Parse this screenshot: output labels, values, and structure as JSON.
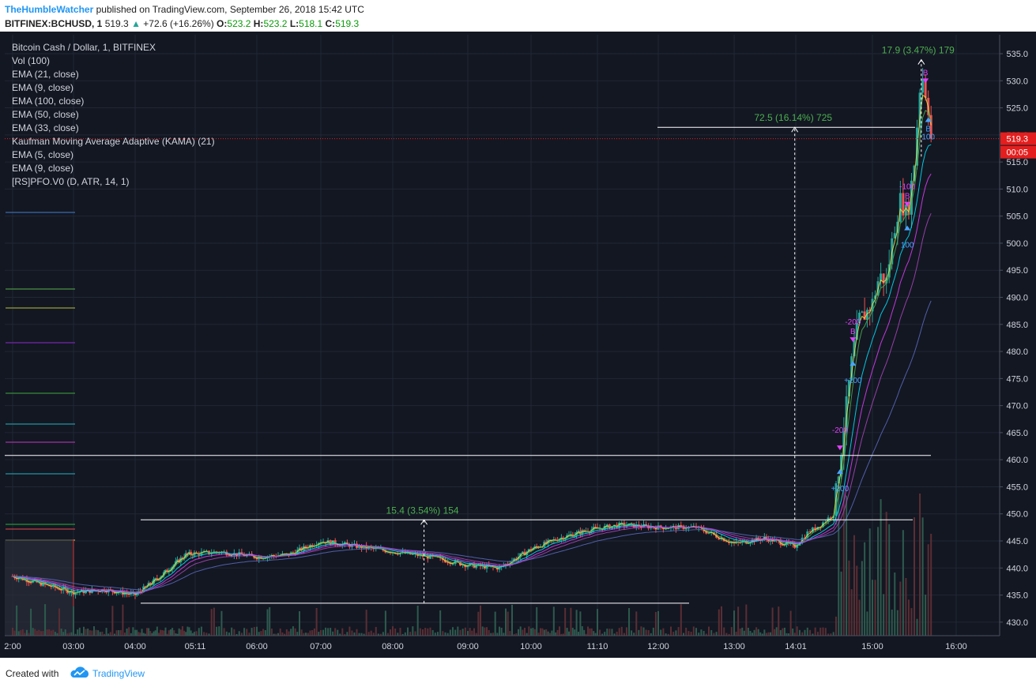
{
  "header": {
    "author": "TheHumbleWatcher",
    "published_text": "published on TradingView.com, September 26, 2018 15:42 UTC",
    "symbol": "BITFINEX:BCHUSD, 1",
    "last": "519.3",
    "change": "+72.6 (+16.26%)",
    "o_label": "O:",
    "o_value": "523.2",
    "h_label": "H:",
    "h_value": "523.2",
    "l_label": "L:",
    "l_value": "518.1",
    "c_label": "C:",
    "c_value": "519.3"
  },
  "legend": {
    "items": [
      "Bitcoin Cash / Dollar, 1, BITFINEX",
      "Vol (100)",
      "EMA (21, close)",
      "EMA (9, close)",
      "EMA (100, close)",
      "EMA (50, close)",
      "EMA (33, close)",
      "Kaufman Moving Average Adaptive (KAMA) (21)",
      "EMA (5, close)",
      "EMA (9, close)",
      "[RS]PFO.V0 (D, ATR, 14, 1)"
    ]
  },
  "footer": {
    "created_with": "Created with",
    "brand": "TradingView"
  },
  "colors": {
    "background": "#131722",
    "up": "#26a69a",
    "down": "#ef5350",
    "price_tag": "#e41e1e",
    "measure_text": "#4caf50"
  },
  "chart_data": {
    "type": "candlestick",
    "ylim": [
      427.5,
      538.5
    ],
    "y_ticks": [
      430.0,
      435.0,
      440.0,
      445.0,
      450.0,
      455.0,
      460.0,
      465.0,
      470.0,
      475.0,
      480.0,
      485.0,
      490.0,
      495.0,
      500.0,
      505.0,
      510.0,
      515.0,
      520.0,
      525.0,
      530.0,
      535.0
    ],
    "x_ticks": [
      "2:00",
      "03:00",
      "04:00",
      "05:11",
      "06:00",
      "07:00",
      "08:00",
      "09:00",
      "10:00",
      "11:10",
      "12:00",
      "13:00",
      "14:01",
      "15:00",
      "16:00"
    ],
    "price_series": {
      "times": [
        "02:00",
        "02:30",
        "03:00",
        "03:30",
        "04:00",
        "04:30",
        "05:00",
        "05:30",
        "06:00",
        "06:30",
        "07:00",
        "07:30",
        "08:00",
        "08:30",
        "09:00",
        "09:30",
        "10:00",
        "10:30",
        "11:00",
        "11:30",
        "12:00",
        "12:30",
        "13:00",
        "13:30",
        "14:00",
        "14:10",
        "14:20",
        "14:30",
        "14:40",
        "14:45",
        "14:50",
        "14:55",
        "15:00",
        "15:05",
        "15:10",
        "15:15",
        "15:20",
        "15:25",
        "15:30",
        "15:35",
        "15:40",
        "15:42"
      ],
      "close": [
        438.5,
        437.0,
        435.5,
        436.0,
        435.0,
        438.5,
        442.5,
        443.0,
        442.0,
        442.5,
        445.0,
        444.0,
        443.0,
        442.0,
        440.5,
        440.0,
        443.5,
        445.5,
        447.0,
        448.0,
        447.5,
        447.5,
        444.5,
        445.5,
        444.0,
        446.5,
        448.0,
        450.0,
        470.0,
        480.0,
        486.0,
        487.0,
        489.0,
        494.0,
        493.0,
        502.0,
        508.0,
        505.0,
        515.0,
        532.0,
        525.0,
        519.3
      ]
    },
    "current_price": "519.3",
    "countdown": "00:05",
    "horizontal_lines": [
      433.5,
      448.9,
      460.8,
      521.4
    ],
    "measurements": [
      {
        "label": "15.4 (3.54%) 154",
        "from": 433.5,
        "to": 448.9,
        "time": "08:25"
      },
      {
        "label": "72.5 (16.14%) 725",
        "from": 448.9,
        "to": 521.4,
        "time": "14:00"
      },
      {
        "label": "17.9 (3.47%) 179",
        "from": 516.0,
        "to": 533.9,
        "time": "15:35"
      }
    ],
    "signals": [
      {
        "time": "14:45",
        "side": "sell",
        "label": "-200",
        "letter": "B"
      },
      {
        "time": "15:25",
        "side": "sell",
        "label": "-100",
        "letter": "B"
      },
      {
        "time": "15:38",
        "side": "sell",
        "label": "",
        "letter": "B"
      },
      {
        "time": "14:45",
        "side": "buy",
        "label": "+100",
        "letter": ""
      },
      {
        "time": "15:25",
        "side": "buy",
        "label": "100",
        "letter": ""
      },
      {
        "time": "15:40",
        "side": "buy",
        "label": "100",
        "letter": "B"
      },
      {
        "time": "14:35",
        "side": "buy",
        "label": "+200",
        "letter": ""
      },
      {
        "time": "14:35",
        "side": "sell",
        "label": "-200",
        "letter": ""
      }
    ],
    "volume_note": "volume bars along bottom, spiking after 14:30"
  }
}
